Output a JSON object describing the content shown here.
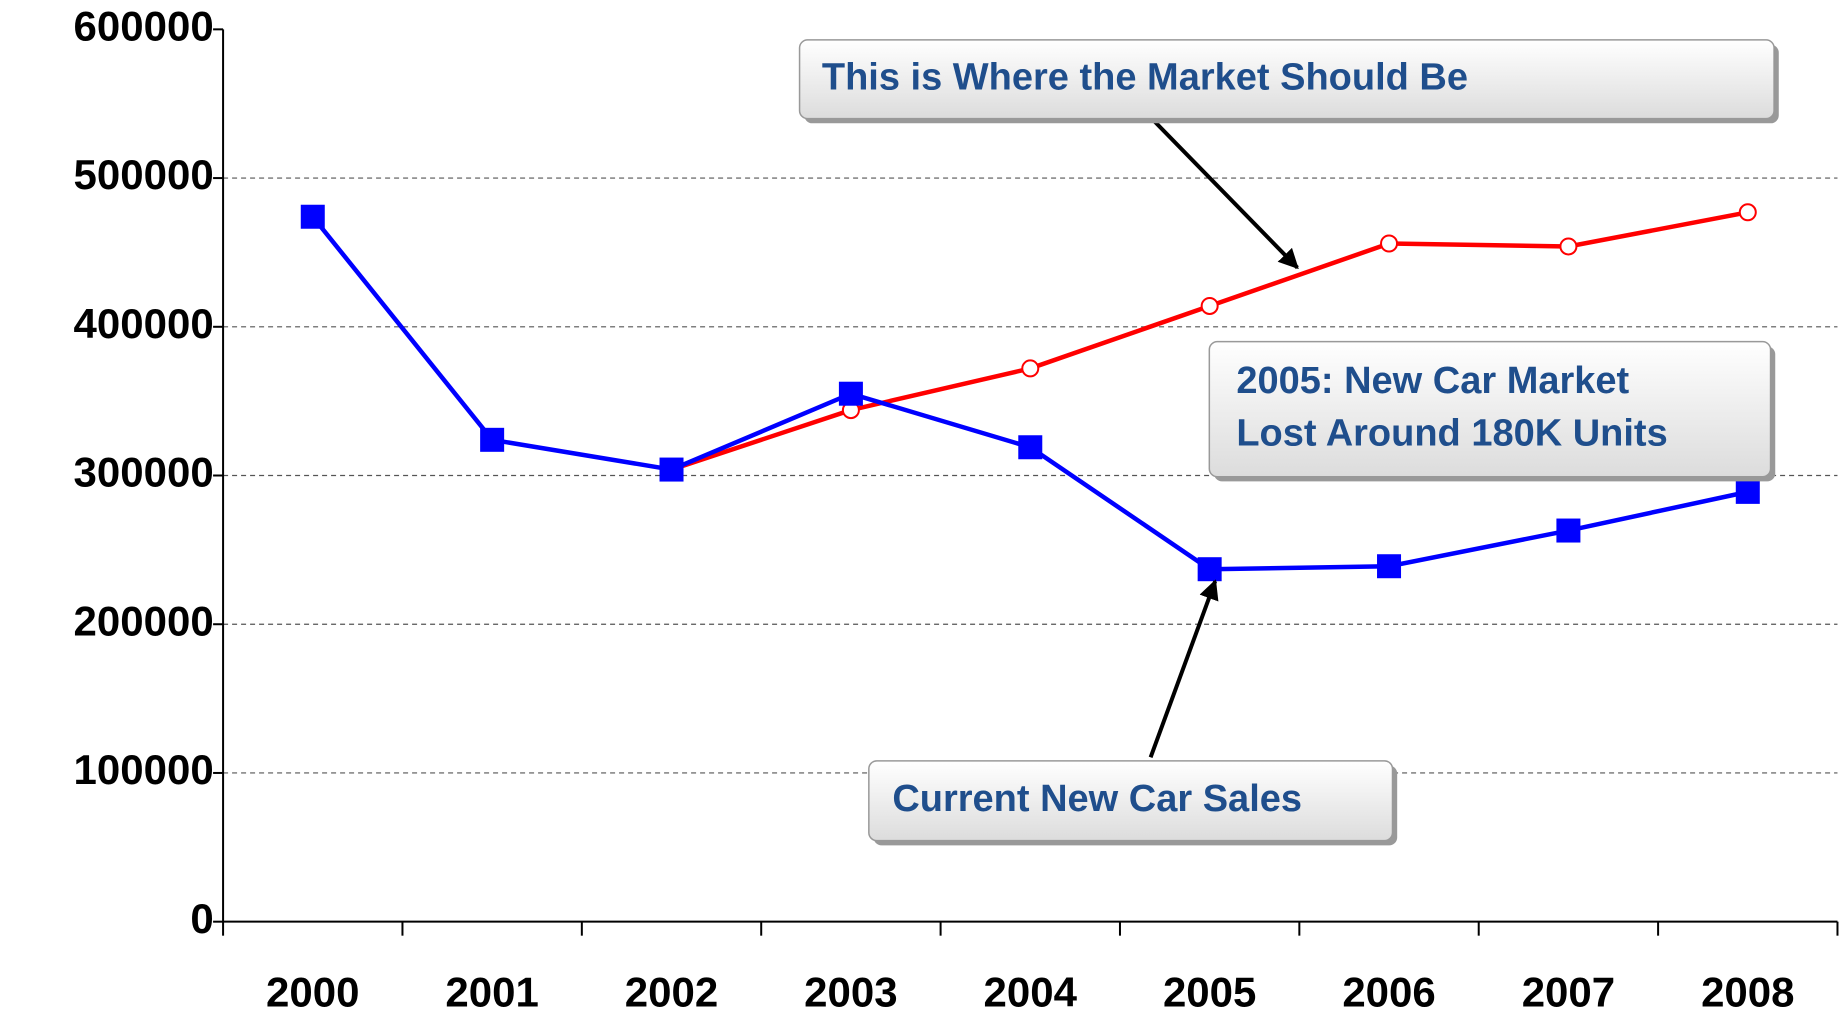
{
  "chart_data": {
    "type": "line",
    "categories": [
      "2000",
      "2001",
      "2002",
      "2003",
      "2004",
      "2005",
      "2006",
      "2007",
      "2008"
    ],
    "series": [
      {
        "color": "#0000ff",
        "marker": "square",
        "values": [
          474000,
          324000,
          304000,
          355000,
          319000,
          237000,
          239000,
          263000,
          289000
        ]
      },
      {
        "color": "#ff0000",
        "marker": "circle",
        "values": [
          null,
          null,
          304000,
          344000,
          372000,
          414000,
          456000,
          454000,
          477000
        ]
      }
    ],
    "ylim": [
      0,
      600000
    ],
    "yticks": [
      0,
      100000,
      200000,
      300000,
      400000,
      500000,
      600000
    ],
    "grid": true,
    "annotations": [
      {
        "lines": [
          "This is Where the Market Should Be"
        ]
      },
      {
        "lines": [
          "2005: New Car Market",
          "Lost Around 180K Units"
        ]
      },
      {
        "lines": [
          "Current New Car Sales"
        ]
      }
    ]
  }
}
